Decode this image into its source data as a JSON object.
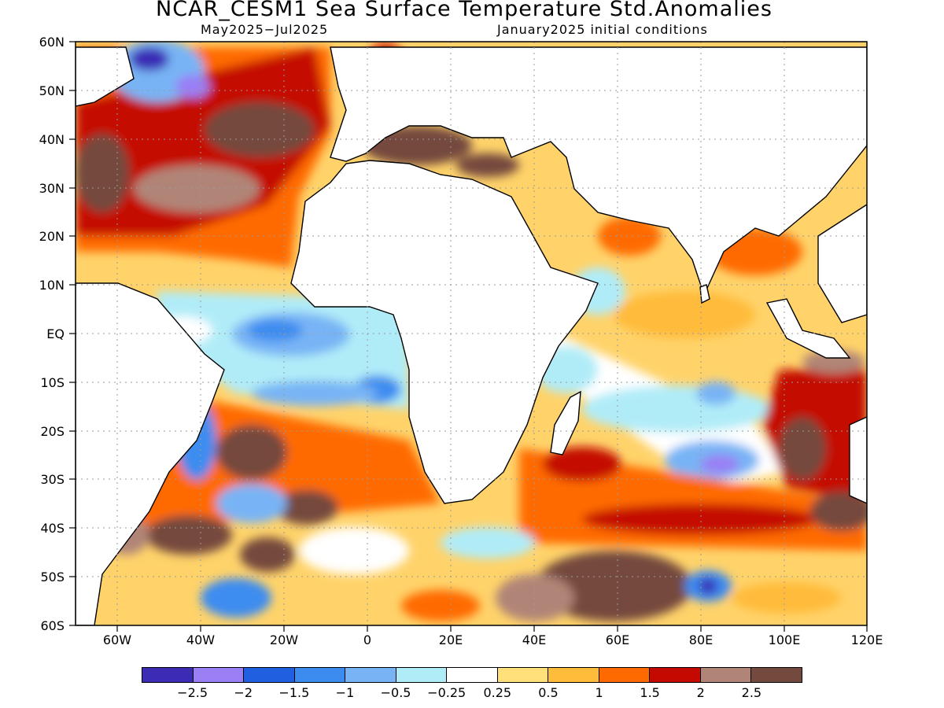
{
  "header": {
    "title": "NCAR_CESM1 Sea Surface Temperature Std.Anomalies",
    "period": "May2025−Jul2025",
    "init": "January2025 initial conditions"
  },
  "map": {
    "lat_labels": [
      "60N",
      "50N",
      "40N",
      "30N",
      "20N",
      "10N",
      "EQ",
      "10S",
      "20S",
      "30S",
      "40S",
      "50S",
      "60S"
    ],
    "lon_labels": [
      "60W",
      "40W",
      "20W",
      "0",
      "20E",
      "40E",
      "60E",
      "80E",
      "100E",
      "120E"
    ],
    "lat_range": [
      -60,
      60
    ],
    "lon_range": [
      -70,
      120
    ],
    "grid": "dotted",
    "land_color": "#ffffff"
  },
  "colorbar": {
    "colors": [
      "#3b2bb5",
      "#9a7ff5",
      "#1f5fe0",
      "#3c8cf0",
      "#78b4f5",
      "#b0ecf8",
      "#ffffff",
      "#ffe07a",
      "#ffbb3a",
      "#ff6a00",
      "#c40a00",
      "#b08577",
      "#744a3e"
    ],
    "labels": [
      "−2.5",
      "−2",
      "−1.5",
      "−1",
      "−0.5",
      "−0.25",
      "0.25",
      "0.5",
      "1",
      "1.5",
      "2",
      "2.5"
    ]
  }
}
